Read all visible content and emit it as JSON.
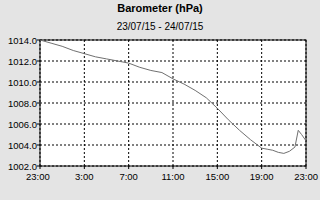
{
  "chart_data": {
    "type": "line",
    "title": "Barometer (hPa)",
    "subtitle": "23/07/15 - 24/07/15",
    "x": [
      0,
      1,
      2,
      3,
      4,
      5,
      6,
      7,
      8,
      9,
      10,
      11,
      12,
      13,
      14,
      15,
      16,
      17,
      18,
      19,
      20,
      20.5,
      21,
      21.5,
      22,
      22.5,
      23,
      23.3,
      23.6,
      24
    ],
    "values": [
      1014.0,
      1013.7,
      1013.4,
      1013.0,
      1012.7,
      1012.4,
      1012.2,
      1012.0,
      1011.8,
      1011.4,
      1011.1,
      1010.9,
      1010.3,
      1009.8,
      1009.2,
      1008.5,
      1007.5,
      1006.4,
      1005.4,
      1004.5,
      1003.7,
      1003.6,
      1003.5,
      1003.3,
      1003.2,
      1003.4,
      1003.8,
      1005.4,
      1005.0,
      1004.4
    ],
    "color": "#707070",
    "xlim": [
      0,
      24
    ],
    "xticks": [
      {
        "value": 0,
        "label": "23:00"
      },
      {
        "value": 4,
        "label": "3:00"
      },
      {
        "value": 8,
        "label": "7:00"
      },
      {
        "value": 12,
        "label": "11:00"
      },
      {
        "value": 16,
        "label": "15:00"
      },
      {
        "value": 20,
        "label": "19:00"
      },
      {
        "value": 24,
        "label": "23:00"
      }
    ],
    "ylim": [
      1002,
      1014
    ],
    "yticks": [
      {
        "value": 1002,
        "label": "1002.0"
      },
      {
        "value": 1004,
        "label": "1004.0"
      },
      {
        "value": 1006,
        "label": "1006.0"
      },
      {
        "value": 1008,
        "label": "1008.0"
      },
      {
        "value": 1010,
        "label": "1010.0"
      },
      {
        "value": 1012,
        "label": "1012.0"
      },
      {
        "value": 1014,
        "label": "1014.0"
      }
    ],
    "grid": true
  }
}
